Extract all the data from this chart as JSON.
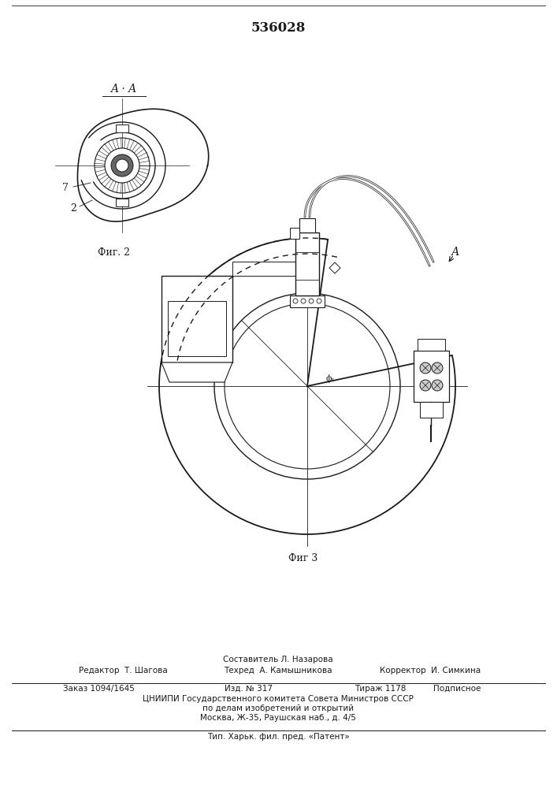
{
  "patent_number": "536028",
  "fig2_label": "Фиг. 2",
  "fig3_label": "Фиг 3",
  "aa_label": "A · A",
  "footer_composer": "Составитель Л. Назарова",
  "footer_editor": "Редактор  Т. Шагова",
  "footer_tech": "Техред  А. Камышникова",
  "footer_corrector": "Корректор  И. Симкина",
  "footer_order": "Заказ 1094/1645",
  "footer_izd": "Изд. № 317",
  "footer_tirazh": "Тираж 1178",
  "footer_podp": "Подписное",
  "footer_org": "ЦНИИПИ Государственного комитета Совета Министров СССР",
  "footer_dept": "по делам изобретений и открытий",
  "footer_addr": "Москва, Ж-35, Раушская наб., д. 4/5",
  "footer_tip": "Тип. Харьк. фил. пред. «Патент»",
  "bg_color": "#ffffff",
  "line_color": "#1a1a1a"
}
